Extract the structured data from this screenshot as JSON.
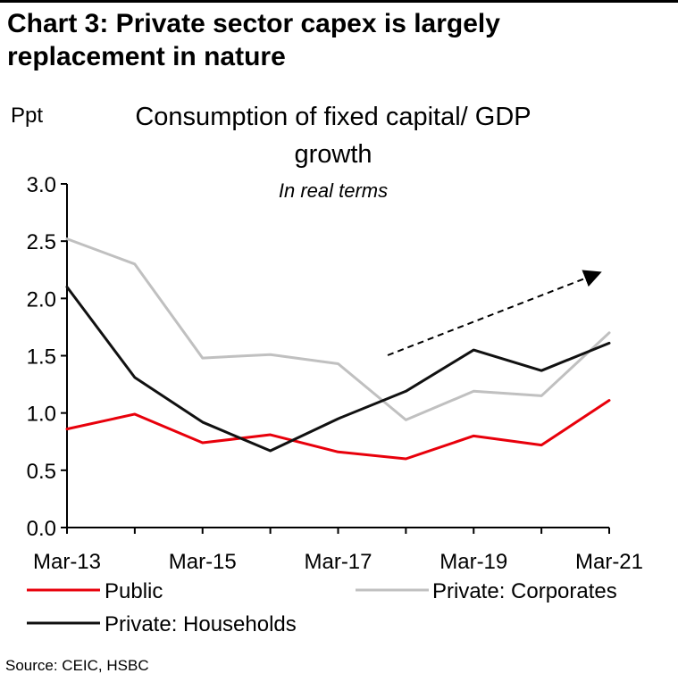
{
  "heading_line1": "Chart 3: Private sector capex is largely",
  "heading_line2": "replacement in nature",
  "source": "Source: CEIC, HSBC",
  "chart_data": {
    "type": "line",
    "title_line1": "Consumption of fixed capital/ GDP",
    "title_line2": "growth",
    "subtitle": "In real terms",
    "ylabel": "Ppt",
    "ylim": [
      0,
      3
    ],
    "yticks": [
      "0.0",
      "0.5",
      "1.0",
      "1.5",
      "2.0",
      "2.5",
      "3.0"
    ],
    "x": [
      "Mar-13",
      "Mar-14",
      "Mar-15",
      "Mar-16",
      "Mar-17",
      "Mar-18",
      "Mar-19",
      "Mar-20",
      "Mar-21"
    ],
    "xtick_labels": [
      "Mar-13",
      "Mar-15",
      "Mar-17",
      "Mar-19",
      "Mar-21"
    ],
    "series": [
      {
        "name": "Public",
        "color": "#e8000b",
        "values": [
          0.86,
          0.99,
          0.74,
          0.81,
          0.66,
          0.6,
          0.8,
          0.72,
          1.11
        ]
      },
      {
        "name": "Private: Corporates",
        "color": "#c0c0c0",
        "values": [
          2.52,
          2.3,
          1.48,
          1.51,
          1.43,
          0.94,
          1.19,
          1.15,
          1.7
        ]
      },
      {
        "name": "Private: Households",
        "color": "#111111",
        "values": [
          2.1,
          1.31,
          0.92,
          0.67,
          0.95,
          1.19,
          1.55,
          1.37,
          1.61
        ]
      }
    ],
    "annotation": "dashed-upward-arrow"
  }
}
